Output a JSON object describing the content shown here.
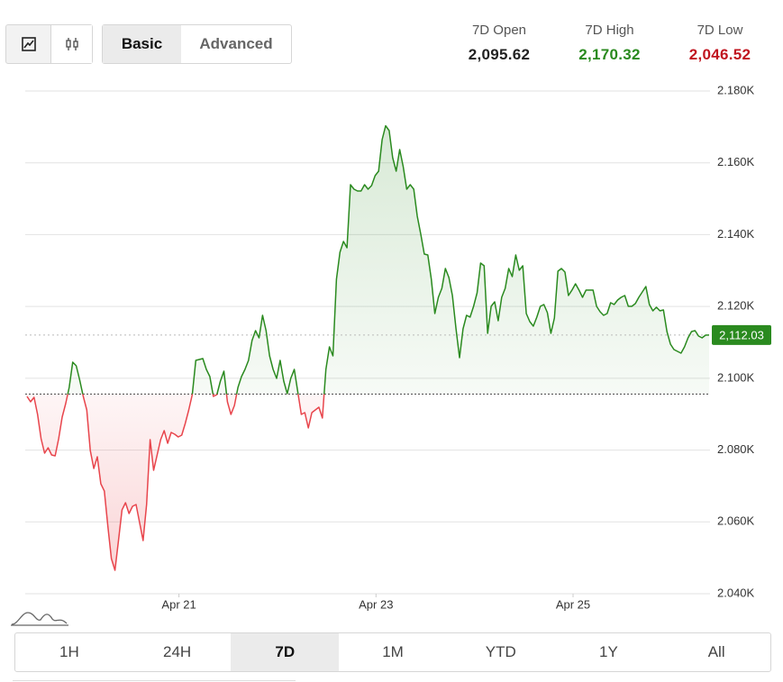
{
  "header": {
    "view_modes": [
      "Basic",
      "Advanced"
    ],
    "selected_view_mode": 0,
    "stats": [
      {
        "label": "7D Open",
        "value": "2,095.62",
        "color": "#222222"
      },
      {
        "label": "7D High",
        "value": "2,170.32",
        "color": "#2a8a1f"
      },
      {
        "label": "7D Low",
        "value": "2,046.52",
        "color": "#c0151f"
      }
    ]
  },
  "ranges": [
    "1H",
    "24H",
    "7D",
    "1M",
    "YTD",
    "1Y",
    "All"
  ],
  "selected_range": 2,
  "chart_data": {
    "type": "line",
    "values": [
      2094.94,
      2093.44,
      2094.69,
      2089.93,
      2083.15,
      2079.14,
      2080.64,
      2078.64,
      2078.39,
      2083.15,
      2089.17,
      2092.94,
      2097.45,
      2104.48,
      2103.47,
      2099.46,
      2094.94,
      2091.18,
      2079.89,
      2074.87,
      2078.13,
      2070.61,
      2068.6,
      2058.81,
      2049.78,
      2046.52,
      2054.8,
      2063.33,
      2065.34,
      2062.33,
      2064.33,
      2064.84,
      2059.82,
      2054.8,
      2064.84,
      2082.9,
      2074.37,
      2078.64,
      2082.9,
      2085.41,
      2081.9,
      2084.91,
      2084.41,
      2083.65,
      2084.16,
      2087.42,
      2091.18,
      2095.45,
      2104.98,
      2105.23,
      2105.48,
      2102.47,
      2100.46,
      2094.94,
      2095.45,
      2099.21,
      2101.97,
      2093.44,
      2089.93,
      2092.43,
      2097.45,
      2100.46,
      2102.47,
      2104.98,
      2110.5,
      2113.26,
      2111.25,
      2117.52,
      2113.26,
      2106.23,
      2102.47,
      2099.96,
      2104.98,
      2099.21,
      2095.7,
      2099.96,
      2102.47,
      2096.2,
      2089.93,
      2090.43,
      2086.16,
      2090.43,
      2091.18,
      2091.93,
      2088.92,
      2102.47,
      2108.74,
      2106.23,
      2127.56,
      2135.09,
      2138.1,
      2136.34,
      2153.91,
      2152.65,
      2152.15,
      2152.15,
      2153.91,
      2152.65,
      2153.65,
      2156.41,
      2157.67,
      2166.45,
      2170.32,
      2168.96,
      2161.43,
      2157.67,
      2163.69,
      2158.92,
      2152.65,
      2153.91,
      2152.65,
      2145.12,
      2140.11,
      2134.59,
      2134.34,
      2127.56,
      2118.03,
      2122.54,
      2125.05,
      2130.57,
      2128.06,
      2123.04,
      2113.76,
      2105.73,
      2113.76,
      2117.52,
      2117.02,
      2120.03,
      2123.8,
      2132.08,
      2131.32,
      2112.51,
      2120.03,
      2121.29,
      2116.02,
      2122.54,
      2125.05,
      2130.57,
      2128.31,
      2134.34,
      2130.07,
      2131.32,
      2118.03,
      2115.77,
      2114.51,
      2117.02,
      2120.03,
      2120.54,
      2118.28,
      2112.51,
      2116.77,
      2129.82,
      2130.57,
      2129.57,
      2123.04,
      2124.55,
      2126.31,
      2124.55,
      2122.54,
      2124.55,
      2124.55,
      2124.55,
      2120.03,
      2118.53,
      2117.52,
      2118.03,
      2121.04,
      2120.54,
      2121.79,
      2122.54,
      2123.04,
      2120.03,
      2120.03,
      2120.79,
      2122.54,
      2124.05,
      2125.55,
      2120.54,
      2118.78,
      2119.78,
      2118.78,
      2119.03,
      2113.01,
      2109.5,
      2107.99,
      2107.49,
      2106.99,
      2108.74,
      2111.25,
      2113.01,
      2113.26,
      2111.75,
      2111.25,
      2112.01,
      2112.03
    ],
    "last_label": "2,112.03",
    "baseline": 2095.62,
    "up_color": "#2a8a1f",
    "down_color": "#e8454c",
    "xlim": [
      19.44,
      26.39
    ],
    "xticks": [
      {
        "value": 21,
        "label": "Apr 21"
      },
      {
        "value": 23,
        "label": "Apr 23"
      },
      {
        "value": 25,
        "label": "Apr 25"
      }
    ],
    "ylim": [
      2040,
      2180
    ],
    "yticks": [
      {
        "value": 2040,
        "label": "2.040K"
      },
      {
        "value": 2060,
        "label": "2.060K"
      },
      {
        "value": 2080,
        "label": "2.080K"
      },
      {
        "value": 2100,
        "label": "2.100K"
      },
      {
        "value": 2120,
        "label": "2.120K"
      },
      {
        "value": 2140,
        "label": "2.140K"
      },
      {
        "value": 2160,
        "label": "2.160K"
      },
      {
        "value": 2180,
        "label": "2.180K"
      }
    ],
    "grid": true
  }
}
